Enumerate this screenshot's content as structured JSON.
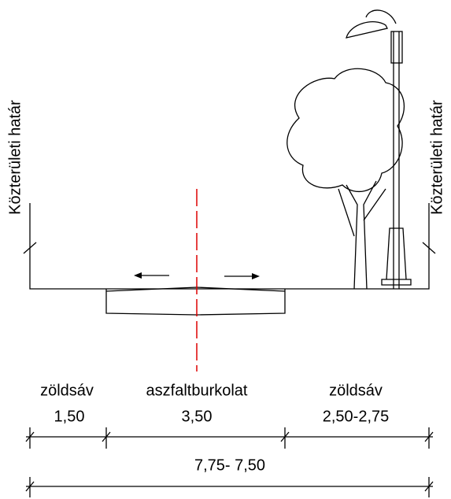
{
  "boundary_labels": [
    "Közterületi határ",
    "Közterületi határ"
  ],
  "zones": [
    {
      "name": "zöldsáv",
      "width": "1,50"
    },
    {
      "name": "aszfaltburkolat",
      "width": "3,50"
    },
    {
      "name": "zöldsáv",
      "width": "2,50-2,75"
    }
  ],
  "total_width": "7,75- 7,50"
}
